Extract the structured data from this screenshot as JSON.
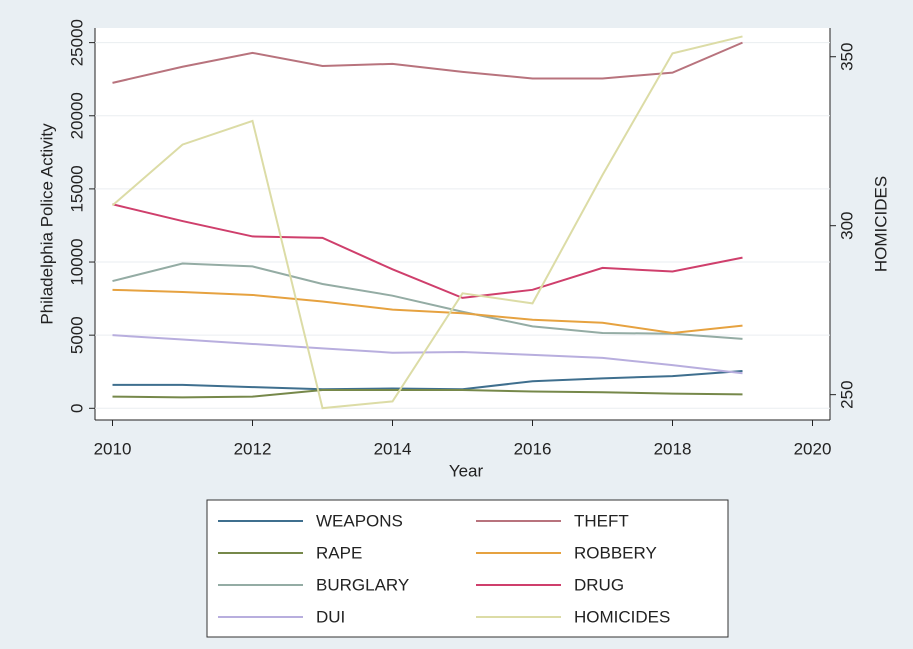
{
  "chart_data": {
    "type": "line",
    "x_label": "Year",
    "y_label": "Philadelphia Police Activity",
    "y2_label": "HOMICIDES",
    "x": [
      2010,
      2011,
      2012,
      2013,
      2014,
      2015,
      2016,
      2017,
      2018,
      2019
    ],
    "xlim": [
      2009.75,
      2020.25
    ],
    "xticks": [
      2010,
      2012,
      2014,
      2016,
      2018,
      2020
    ],
    "ylim": [
      -800,
      26000
    ],
    "yticks": [
      0,
      5000,
      10000,
      15000,
      20000,
      25000
    ],
    "y2lim": [
      242.5,
      358.5
    ],
    "y2ticks": [
      250,
      300,
      350
    ],
    "grid": true,
    "legend_position": "bottom",
    "series": [
      {
        "name": "WEAPONS",
        "color": "#3f6f8e",
        "values": [
          1600,
          1600,
          1450,
          1300,
          1350,
          1300,
          1850,
          2050,
          2200,
          2550
        ]
      },
      {
        "name": "RAPE",
        "color": "#76884a",
        "values": [
          800,
          750,
          800,
          1250,
          1250,
          1250,
          1150,
          1100,
          1000,
          950
        ]
      },
      {
        "name": "BURGLARY",
        "color": "#94aca4",
        "values": [
          8700,
          9900,
          9700,
          8500,
          7700,
          6600,
          5600,
          5150,
          5100,
          4750
        ]
      },
      {
        "name": "DUI",
        "color": "#b8aede",
        "values": [
          5000,
          4700,
          4400,
          4100,
          3800,
          3850,
          3650,
          3450,
          2950,
          2400
        ]
      },
      {
        "name": "THEFT",
        "color": "#b8737d",
        "values": [
          22250,
          23350,
          24300,
          23400,
          23550,
          23000,
          22550,
          22550,
          22950,
          25000
        ]
      },
      {
        "name": "ROBBERY",
        "color": "#e6a240",
        "values": [
          8100,
          7950,
          7750,
          7300,
          6750,
          6500,
          6050,
          5850,
          5150,
          5650
        ]
      },
      {
        "name": "DRUG",
        "color": "#cf3f6c",
        "values": [
          13950,
          12800,
          11750,
          11650,
          9500,
          7550,
          8100,
          9600,
          9350,
          10300
        ]
      },
      {
        "name": "HOMICIDES",
        "color": "#dcdca6",
        "axis": "y2",
        "values": [
          306,
          324,
          331,
          246,
          248,
          280,
          277,
          315,
          351,
          356
        ]
      }
    ]
  }
}
